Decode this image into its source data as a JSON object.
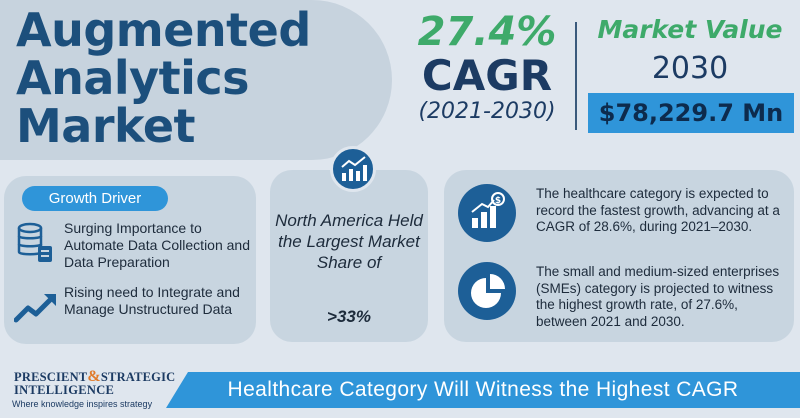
{
  "title": {
    "line1": "Augmented",
    "line2": "Analytics",
    "line3": "Market"
  },
  "cagr": {
    "percent": "27.4%",
    "label": "CAGR",
    "period": "(2021-2030)"
  },
  "market_value": {
    "label": "Market Value",
    "year": "2030",
    "value": "$78,229.7 Mn"
  },
  "growth_driver": {
    "heading": "Growth Driver",
    "items": [
      "Surging Importance to Automate Data Collection and Data Preparation",
      "Rising need to Integrate and Manage Unstructured Data"
    ]
  },
  "region": {
    "text": "North America Held the Largest Market Share of",
    "share": ">33%"
  },
  "insights": [
    "The healthcare category is expected to record the fastest growth, advancing at a CAGR of 28.6%, during 2021–2030.",
    "The small and medium-sized enterprises (SMEs) category is projected to witness the highest growth rate, of 27.6%, between 2021 and 2030."
  ],
  "logo": {
    "line1a": "PRESCIENT",
    "amp": "&",
    "line1b": "STRATEGIC",
    "line2": "INTELLIGENCE",
    "tagline": "Where knowledge inspires strategy"
  },
  "banner": "Healthcare Category Will Witness the Highest CAGR",
  "colors": {
    "navy": "#1c4f7c",
    "green": "#3eaa6a",
    "accent_blue": "#2f95d9",
    "icon_blue": "#1d5f97",
    "background": "#dfe6ee",
    "panel": "#c8d5e0"
  },
  "icons": [
    "chart-growth-icon",
    "database-icon",
    "trend-arrow-icon",
    "dollar-chart-icon",
    "pie-chart-icon"
  ]
}
